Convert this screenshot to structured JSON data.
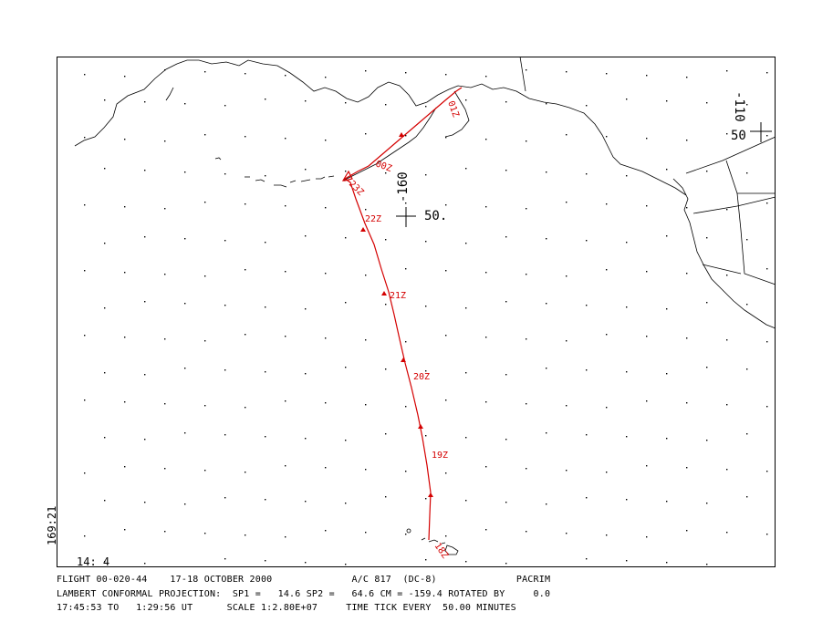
{
  "map": {
    "grid_labels": {
      "center_lon": "-160",
      "center_lat": "50.",
      "edge_lon": "-110",
      "edge_lat": "50"
    },
    "time_labels": [
      "18Z",
      "19Z",
      "20Z",
      "21Z",
      "22Z",
      "23Z",
      "00Z",
      "01Z"
    ],
    "side_time": "169:21",
    "corner_time": "14: 4",
    "colors": {
      "track": "#d40000",
      "coast": "#000000"
    }
  },
  "footer": {
    "line1": "FLIGHT 00-020-44    17-18 OCTOBER 2000              A/C 817  (DC-8)              PACRIM",
    "line2": "LAMBERT CONFORMAL PROJECTION:  SP1 =   14.6 SP2 =   64.6 CM = -159.4 ROTATED BY     0.0",
    "line3": "17:45:53 TO   1:29:56 UT      SCALE 1:2.80E+07     TIME TICK EVERY  50.00 MINUTES"
  }
}
